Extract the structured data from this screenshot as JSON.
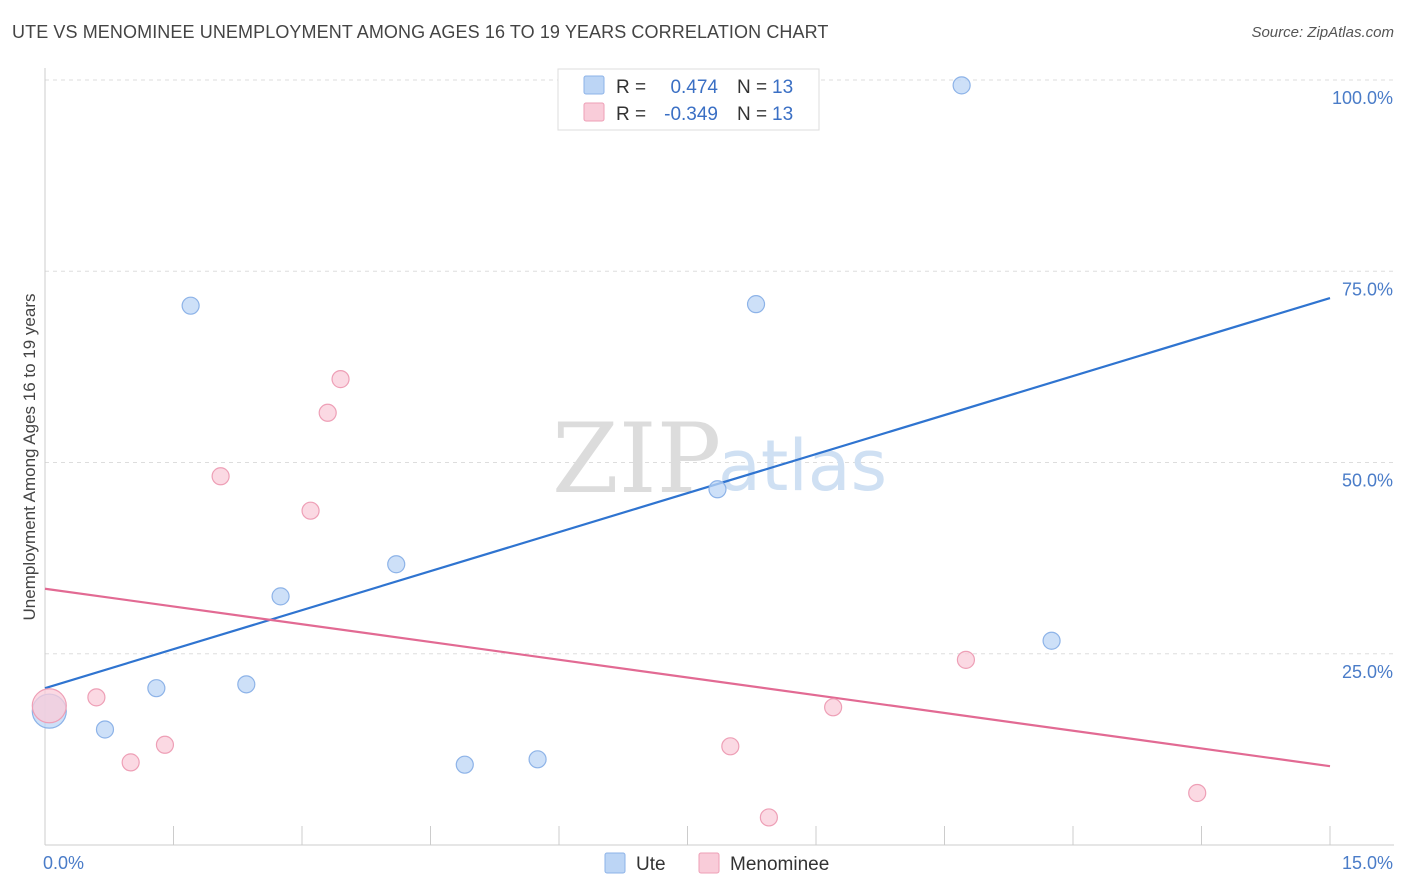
{
  "title": "UTE VS MENOMINEE UNEMPLOYMENT AMONG AGES 16 TO 19 YEARS CORRELATION CHART",
  "source": "Source: ZipAtlas.com",
  "watermark": {
    "zip": "ZIP",
    "atlas": "atlas"
  },
  "colors": {
    "ute_fill": "#bcd5f5",
    "ute_stroke": "#8db3e8",
    "ute_line": "#2f74d0",
    "men_fill": "#f9ccd9",
    "men_stroke": "#ee9fb6",
    "men_line": "#e26a93",
    "grid": "#dddddd",
    "tick_text": "#4a7cc8"
  },
  "legend": {
    "rows": [
      {
        "r_label": "R =",
        "r_value": "0.474",
        "n_label": "N =",
        "n_value": "13"
      },
      {
        "r_label": "R =",
        "r_value": "-0.349",
        "n_label": "N =",
        "n_value": "13"
      }
    ]
  },
  "chart_data": {
    "type": "scatter",
    "title": "UTE VS MENOMINEE UNEMPLOYMENT AMONG AGES 16 TO 19 YEARS CORRELATION CHART",
    "xlabel": "",
    "ylabel": "Unemployment Among Ages 16 to 19 years",
    "xlim": [
      0,
      15
    ],
    "ylim": [
      0,
      102
    ],
    "x_tick_labels": [
      {
        "value": 0,
        "label": "0.0%"
      },
      {
        "value": 15,
        "label": "15.0%"
      }
    ],
    "y_tick_labels": [
      {
        "value": 25,
        "label": "25.0%"
      },
      {
        "value": 50,
        "label": "50.0%"
      },
      {
        "value": 75,
        "label": "75.0%"
      },
      {
        "value": 100,
        "label": "100.0%"
      }
    ],
    "y_gridlines": [
      25,
      50,
      75,
      100
    ],
    "x_minor_ticks": [
      1.5,
      3,
      4.5,
      6,
      7.5,
      9,
      10.5,
      12,
      13.5,
      15
    ],
    "grid": true,
    "legend_position": "top-center",
    "series": [
      {
        "name": "Ute",
        "points": [
          {
            "x": 0.05,
            "y": 17.5,
            "size": "large"
          },
          {
            "x": 0.7,
            "y": 15.1
          },
          {
            "x": 1.3,
            "y": 20.5
          },
          {
            "x": 1.7,
            "y": 70.5
          },
          {
            "x": 2.35,
            "y": 21.0
          },
          {
            "x": 2.75,
            "y": 32.5
          },
          {
            "x": 4.1,
            "y": 36.7
          },
          {
            "x": 4.9,
            "y": 10.5
          },
          {
            "x": 5.75,
            "y": 11.2
          },
          {
            "x": 7.85,
            "y": 46.5
          },
          {
            "x": 8.3,
            "y": 70.7
          },
          {
            "x": 10.7,
            "y": 99.3
          },
          {
            "x": 11.75,
            "y": 26.7
          }
        ],
        "trend": {
          "x": [
            0,
            15
          ],
          "y": [
            20.5,
            71.5
          ]
        }
      },
      {
        "name": "Menominee",
        "points": [
          {
            "x": 0.05,
            "y": 18.2,
            "size": "large"
          },
          {
            "x": 0.6,
            "y": 19.3
          },
          {
            "x": 1.0,
            "y": 10.8
          },
          {
            "x": 1.4,
            "y": 13.1
          },
          {
            "x": 2.05,
            "y": 48.2
          },
          {
            "x": 3.1,
            "y": 43.7
          },
          {
            "x": 3.3,
            "y": 56.5
          },
          {
            "x": 3.45,
            "y": 60.9
          },
          {
            "x": 8.0,
            "y": 12.9
          },
          {
            "x": 8.45,
            "y": 3.6
          },
          {
            "x": 9.2,
            "y": 18.0
          },
          {
            "x": 10.75,
            "y": 24.2
          },
          {
            "x": 13.45,
            "y": 6.8
          }
        ],
        "trend": {
          "x": [
            0,
            15
          ],
          "y": [
            33.5,
            10.3
          ]
        }
      }
    ]
  }
}
